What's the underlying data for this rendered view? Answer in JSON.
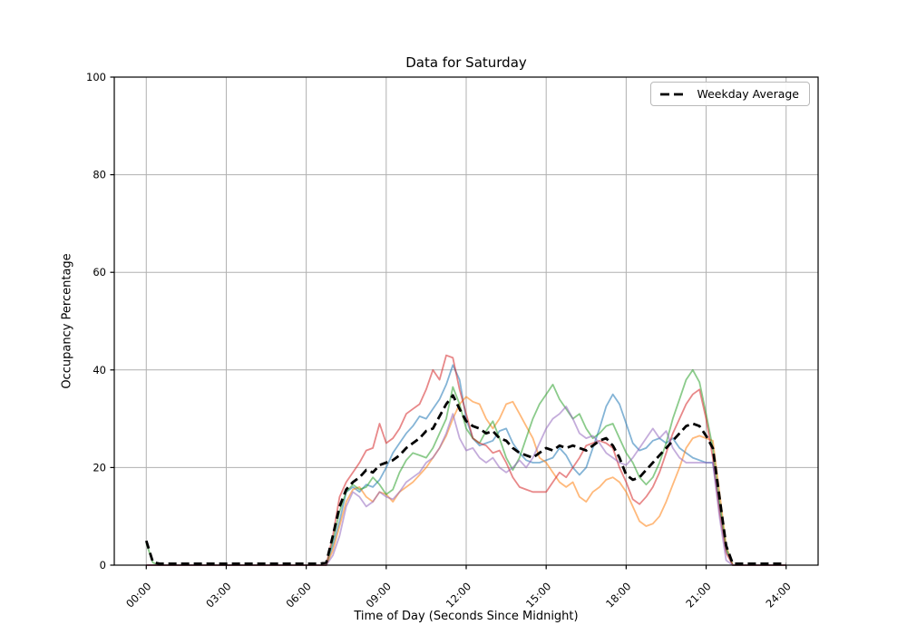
{
  "chart_data": {
    "type": "line",
    "title": "Data for Saturday",
    "xlabel": "Time of Day (Seconds Since Midnight)",
    "ylabel": "Occupancy Percentage",
    "ylim": [
      0,
      100
    ],
    "xlim_hours": [
      -1.2,
      25.2
    ],
    "grid": true,
    "grid_color": "#b0b0b0",
    "y_ticks": [
      0,
      20,
      40,
      60,
      80,
      100
    ],
    "x_tick_hours": [
      0,
      3,
      6,
      9,
      12,
      15,
      18,
      21,
      24
    ],
    "x_tick_labels": [
      "00:00",
      "03:00",
      "06:00",
      "09:00",
      "12:00",
      "15:00",
      "18:00",
      "21:00",
      "24:00"
    ],
    "legend": {
      "position": "upper right",
      "entries": [
        "Weekday Average"
      ]
    },
    "x_start_hour": 0,
    "x_step_hours": 0.25,
    "series": [
      {
        "name": "saturday-series-1",
        "legend_label": null,
        "color": "#1f77b4",
        "opacity": 0.55,
        "width": 1.8,
        "dash": null,
        "values": [
          0,
          0,
          0,
          0,
          0,
          0,
          0,
          0,
          0,
          0,
          0,
          0,
          0,
          0,
          0,
          0,
          0,
          0,
          0,
          0,
          0,
          0,
          0,
          0,
          0,
          0,
          0,
          0,
          4,
          9,
          15,
          16,
          15,
          16.5,
          16,
          17.5,
          20,
          23,
          25,
          27,
          28.5,
          30.5,
          30,
          32,
          34,
          37,
          41,
          38,
          30,
          26,
          24.5,
          25,
          25.5,
          27.5,
          28,
          25,
          23,
          21.5,
          21,
          21,
          21.5,
          22,
          24,
          22.5,
          20,
          18.5,
          20,
          24,
          28,
          32.5,
          35,
          33,
          29,
          25,
          23.5,
          24,
          25.5,
          26,
          25,
          26,
          24,
          23,
          22,
          21.5,
          21,
          21,
          12,
          3,
          0,
          0,
          0,
          0,
          0,
          0,
          0,
          0,
          0
        ]
      },
      {
        "name": "saturday-series-2",
        "legend_label": null,
        "color": "#ff7f0e",
        "opacity": 0.55,
        "width": 1.8,
        "dash": null,
        "values": [
          0,
          0,
          0,
          0,
          0,
          0,
          0,
          0,
          0,
          0,
          0,
          0,
          0,
          0,
          0,
          0,
          0,
          0,
          0,
          0,
          0,
          0,
          0,
          0,
          0,
          0,
          0,
          0,
          3,
          8,
          13,
          15.5,
          16,
          14,
          13,
          15,
          14.5,
          13,
          15,
          16,
          17,
          18.5,
          20,
          22,
          24,
          26.5,
          30,
          33,
          34.5,
          33.5,
          33,
          30,
          28,
          30,
          33,
          33.5,
          31,
          28.5,
          26,
          22,
          21,
          19,
          17,
          16,
          17,
          14,
          13,
          15,
          16,
          17.5,
          18,
          17,
          15,
          12,
          9,
          8,
          8.5,
          10,
          13,
          16.5,
          20,
          24,
          26,
          26.5,
          26,
          25.5,
          15,
          4,
          0,
          0,
          0,
          0,
          0,
          0,
          0,
          0,
          0
        ]
      },
      {
        "name": "saturday-series-3",
        "legend_label": null,
        "color": "#2ca02c",
        "opacity": 0.55,
        "width": 1.8,
        "dash": null,
        "values": [
          4.5,
          0.5,
          0,
          0,
          0,
          0,
          0,
          0,
          0,
          0,
          0,
          0,
          0,
          0,
          0,
          0,
          0,
          0,
          0,
          0,
          0,
          0,
          0,
          0,
          0,
          0,
          0,
          0,
          5,
          11,
          15,
          16.5,
          15.5,
          16,
          18,
          16.5,
          14.5,
          15.5,
          19,
          21.5,
          23,
          22.5,
          22,
          24,
          27,
          30,
          36.5,
          33,
          28,
          26,
          25,
          27.5,
          29.5,
          26,
          22,
          19.5,
          22,
          26,
          30,
          33,
          35,
          37,
          34,
          32,
          30,
          31,
          28,
          26,
          27,
          28.5,
          29,
          26,
          23,
          21,
          18,
          16.5,
          18,
          21,
          25,
          30,
          34,
          38,
          40,
          37.5,
          31,
          24,
          13,
          3.5,
          0,
          0,
          0,
          0,
          0,
          0,
          0,
          0,
          0
        ]
      },
      {
        "name": "saturday-series-4",
        "legend_label": null,
        "color": "#d62728",
        "opacity": 0.55,
        "width": 1.8,
        "dash": null,
        "values": [
          0,
          0,
          0,
          0,
          0,
          0,
          0,
          0,
          0,
          0,
          0,
          0,
          0,
          0,
          0,
          0,
          0,
          0,
          0,
          0,
          0,
          0,
          0,
          0,
          0,
          0,
          0,
          0,
          6,
          14,
          17,
          19,
          21,
          23.5,
          24,
          29,
          25,
          26,
          28,
          31,
          32,
          33,
          36,
          40,
          38,
          43,
          42.5,
          36,
          31,
          26,
          25,
          24.5,
          23,
          23.5,
          21,
          18,
          16,
          15.5,
          15,
          15,
          15,
          17,
          19,
          18,
          20,
          22,
          24.5,
          25,
          25.5,
          25,
          24,
          20,
          17,
          13.5,
          12.5,
          14,
          16,
          19,
          23,
          27,
          30,
          33,
          35,
          36,
          30,
          22,
          11,
          2.5,
          0,
          0,
          0,
          0,
          0,
          0,
          0,
          0,
          0
        ]
      },
      {
        "name": "saturday-series-5",
        "legend_label": null,
        "color": "#9467bd",
        "opacity": 0.55,
        "width": 1.8,
        "dash": null,
        "values": [
          0,
          0,
          0,
          0,
          0,
          0,
          0,
          0,
          0,
          0,
          0,
          0,
          0,
          0,
          0,
          0,
          0,
          0,
          0,
          0,
          0,
          0,
          0,
          0,
          0,
          0,
          0,
          0,
          2,
          6,
          12,
          15,
          14,
          12,
          13,
          15,
          14,
          13.5,
          15,
          17,
          18,
          19,
          21,
          22,
          24,
          27,
          31,
          26,
          23.5,
          24,
          22,
          21,
          22,
          20,
          19,
          20,
          21.5,
          20,
          22,
          25,
          28,
          30,
          31,
          32.5,
          30,
          27,
          26,
          26.5,
          25,
          23,
          22,
          21,
          20.5,
          22,
          24,
          26,
          28,
          26,
          27.5,
          24,
          22,
          21,
          21,
          21,
          21,
          21,
          10,
          1,
          0,
          0,
          0,
          0,
          0,
          0,
          0,
          0,
          0
        ]
      },
      {
        "name": "weekday-average",
        "legend_label": "Weekday Average",
        "color": "#000000",
        "opacity": 1,
        "width": 2.8,
        "dash": [
          9,
          5
        ],
        "values": [
          5,
          0.6,
          0.3,
          0.3,
          0.3,
          0.3,
          0.3,
          0.3,
          0.3,
          0.3,
          0.3,
          0.3,
          0.3,
          0.3,
          0.3,
          0.3,
          0.3,
          0.3,
          0.3,
          0.3,
          0.3,
          0.3,
          0.3,
          0.3,
          0.3,
          0.3,
          0.3,
          0.5,
          6,
          12,
          15.5,
          17,
          18,
          19.5,
          19,
          20.5,
          21,
          21.5,
          22.5,
          24,
          25,
          26,
          27.5,
          28,
          30.5,
          33,
          34.8,
          32,
          29.5,
          28.5,
          28,
          27,
          27.5,
          26,
          25.5,
          24,
          23,
          22.5,
          22,
          23,
          24,
          23.5,
          24.5,
          24,
          24.5,
          24,
          23.5,
          24.5,
          25.5,
          26,
          24.5,
          22,
          18.5,
          17.5,
          18,
          19.5,
          21,
          22.5,
          24,
          25.5,
          27,
          28.5,
          29,
          28.5,
          26.5,
          24,
          14,
          4,
          0.3,
          0.3,
          0.3,
          0.3,
          0.3,
          0.3,
          0.3,
          0.3,
          0.3
        ]
      }
    ]
  }
}
